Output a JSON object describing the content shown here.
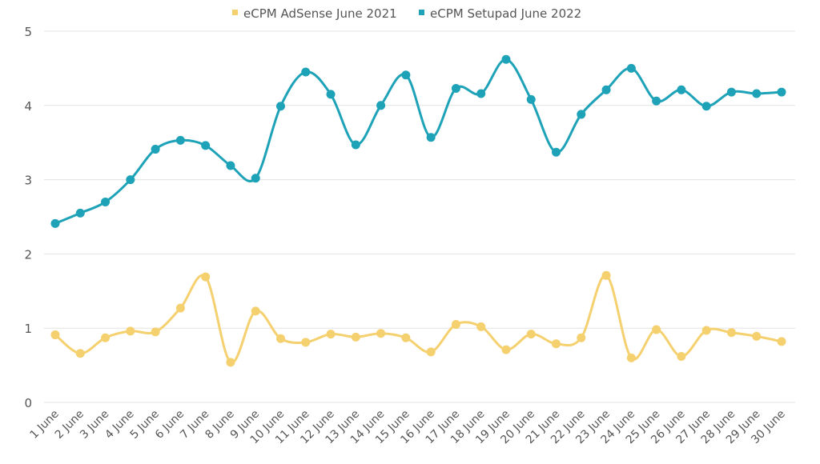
{
  "chart_data": {
    "type": "line",
    "title": "",
    "xlabel": "",
    "ylabel": "",
    "ylim": [
      0,
      5
    ],
    "yticks": [
      "0",
      "1",
      "2",
      "3",
      "4",
      "5"
    ],
    "grid": true,
    "legend_position": "top",
    "categories": [
      "1 June",
      "2 June",
      "3 June",
      "4 June",
      "5 June",
      "6 June",
      "7 June",
      "8 June",
      "9 June",
      "10 June",
      "11 June",
      "12 June",
      "13 June",
      "14 June",
      "15 June",
      "16 June",
      "17 June",
      "18 June",
      "19 June",
      "20 June",
      "21 June",
      "22 June",
      "23 June",
      "24 June",
      "25 June",
      "26 June",
      "27 June",
      "28 June",
      "29 June",
      "30 June"
    ],
    "series": [
      {
        "name": "eCPM AdSense June 2021",
        "color": "#f5d06f",
        "values": [
          0.91,
          0.66,
          0.87,
          0.96,
          0.95,
          1.27,
          1.69,
          0.54,
          1.23,
          0.86,
          0.81,
          0.92,
          0.88,
          0.93,
          0.87,
          0.68,
          1.05,
          1.02,
          0.71,
          0.92,
          0.79,
          0.87,
          1.71,
          0.6,
          0.98,
          0.62,
          0.97,
          0.94,
          0.89,
          0.82
        ]
      },
      {
        "name": "eCPM Setupad June 2022",
        "color": "#1ea2b8",
        "values": [
          2.41,
          2.55,
          2.7,
          3.0,
          3.41,
          3.53,
          3.46,
          3.19,
          3.02,
          3.99,
          4.45,
          4.15,
          3.47,
          4.0,
          4.41,
          3.57,
          4.23,
          4.16,
          4.62,
          4.08,
          3.37,
          3.88,
          4.21,
          4.5,
          4.06,
          4.21,
          3.99,
          4.18,
          4.16,
          4.18
        ]
      }
    ]
  }
}
